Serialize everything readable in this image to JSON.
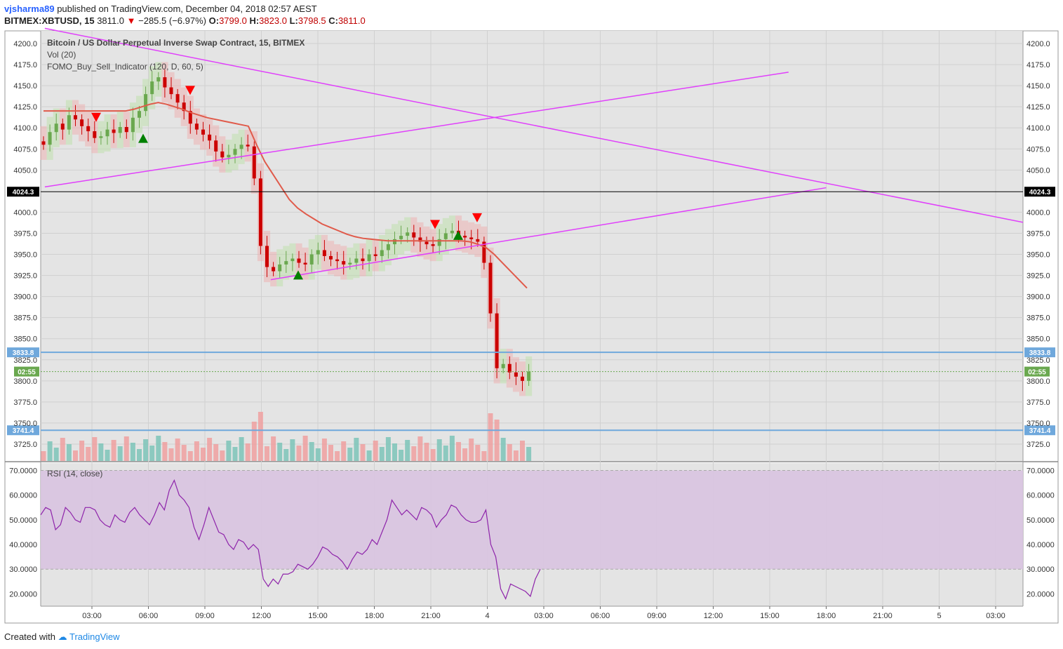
{
  "header": {
    "author": "vjsharma89",
    "published": "published on TradingView.com, December 04, 2018 02:57 AEST",
    "symbol": "BITMEX:XBTUSD, 15",
    "last": "3811.0",
    "change": "−285.5 (−6.97%)",
    "o_label": "O:",
    "o": "3799.0",
    "h_label": "H:",
    "h": "3823.0",
    "l_label": "L:",
    "l": "3798.5",
    "c_label": "C:",
    "c": "3811.0"
  },
  "legend": {
    "title": "Bitcoin / US Dollar Perpetual Inverse Swap Contract, 15, BITMEX",
    "vol": "Vol (20)",
    "indicator": "FOMO_Buy_Sell_Indicator (120, D, 60, 5)",
    "rsi": "RSI (14, close)"
  },
  "footer": {
    "created": "Created with",
    "brand": "TradingView"
  },
  "colors": {
    "up": "#6aa84f",
    "down": "#cc0000",
    "trend": "#e040fb",
    "hline_black": "#000000",
    "hline_blue": "#6fa8dc",
    "rsi_line": "#8e24aa",
    "rsi_fill": "#d8c3e0",
    "ma": "#e05a4a"
  },
  "chart_data": {
    "type": "candlestick",
    "title": "Bitcoin / US Dollar Perpetual Inverse Swap Contract, 15, BITMEX",
    "price_ticks": [
      "4200.0",
      "4175.0",
      "4150.0",
      "4125.0",
      "4100.0",
      "4075.0",
      "4050.0",
      "4000.0",
      "3975.0",
      "3950.0",
      "3925.0",
      "3900.0",
      "3875.0",
      "3850.0",
      "3825.0",
      "3800.0",
      "3775.0",
      "3750.0",
      "3725.0"
    ],
    "ylim": [
      3705,
      4215
    ],
    "time_ticks": [
      "03:00",
      "06:00",
      "09:00",
      "12:00",
      "15:00",
      "18:00",
      "21:00",
      "4",
      "03:00",
      "06:00",
      "09:00",
      "12:00",
      "15:00",
      "18:00",
      "21:00",
      "5",
      "03:00"
    ],
    "price_levels": [
      {
        "label": "4024.3",
        "value": 4024.3,
        "style": "black"
      },
      {
        "label": "3833.8",
        "value": 3833.8,
        "style": "blue"
      },
      {
        "label": "3741.4",
        "value": 3741.4,
        "style": "blue"
      }
    ],
    "countdown": "02:55",
    "last_price": 3811.0,
    "trendlines": [
      {
        "from": [
          "00:30",
          4218
        ],
        "to": [
          "next 05:00",
          3988
        ]
      },
      {
        "from": [
          "00:30",
          4030
        ],
        "to": [
          "16:00",
          4166
        ]
      },
      {
        "from": [
          "12:30",
          3920
        ],
        "to": [
          "18:00",
          4029
        ]
      }
    ],
    "close": [
      4080,
      4095,
      4105,
      4098,
      4115,
      4110,
      4102,
      4096,
      4088,
      4090,
      4098,
      4094,
      4101,
      4095,
      4112,
      4120,
      4140,
      4155,
      4160,
      4148,
      4140,
      4130,
      4120,
      4105,
      4098,
      4092,
      4085,
      4072,
      4065,
      4068,
      4075,
      4080,
      4078,
      4040,
      3960,
      3935,
      3930,
      3938,
      3942,
      3945,
      3940,
      3938,
      3950,
      3955,
      3948,
      3944,
      3942,
      3938,
      3940,
      3945,
      3942,
      3950,
      3948,
      3955,
      3962,
      3968,
      3972,
      3976,
      3970,
      3965,
      3962,
      3960,
      3968,
      3975,
      3978,
      3972,
      3970,
      3968,
      3965,
      3940,
      3880,
      3815,
      3820,
      3810,
      3805,
      3800,
      3811
    ],
    "ma": [
      4120,
      4120,
      4120,
      4120,
      4120,
      4120,
      4120,
      4120,
      4120,
      4120,
      4120,
      4122,
      4125,
      4128,
      4130,
      4128,
      4125,
      4122,
      4118,
      4115,
      4112,
      4110,
      4108,
      4106,
      4104,
      4102,
      4080,
      4060,
      4045,
      4030,
      4015,
      4005,
      3998,
      3992,
      3986,
      3982,
      3978,
      3974,
      3971,
      3969,
      3968,
      3967,
      3966,
      3966,
      3966,
      3966,
      3966,
      3966,
      3966,
      3966,
      3966,
      3966,
      3965,
      3962,
      3958,
      3950,
      3940,
      3930,
      3920,
      3910
    ],
    "volume_note": "Vol (20) histogram, unscaled",
    "rsi": {
      "ticks": [
        "70.0000",
        "60.0000",
        "50.0000",
        "40.0000",
        "30.0000",
        "20.0000"
      ],
      "ylim": [
        15,
        73
      ],
      "band": [
        30,
        70
      ],
      "values": [
        52,
        55,
        54,
        46,
        48,
        55,
        53,
        50,
        49,
        55,
        55,
        54,
        50,
        48,
        47,
        52,
        50,
        49,
        53,
        55,
        52,
        50,
        48,
        52,
        57,
        54,
        62,
        66,
        60,
        58,
        55,
        47,
        42,
        48,
        55,
        50,
        45,
        44,
        40,
        38,
        42,
        41,
        38,
        40,
        38,
        26,
        23,
        26,
        24,
        28,
        28,
        29,
        32,
        31,
        30,
        32,
        35,
        39,
        38,
        36,
        35,
        33,
        30,
        34,
        37,
        36,
        38,
        42,
        40,
        45,
        50,
        58,
        55,
        52,
        54,
        52,
        50,
        55,
        54,
        52,
        47,
        50,
        52,
        56,
        55,
        52,
        50,
        49,
        49,
        50,
        54,
        40,
        35,
        22,
        18,
        24,
        23,
        22,
        21,
        19,
        26,
        30
      ]
    }
  }
}
